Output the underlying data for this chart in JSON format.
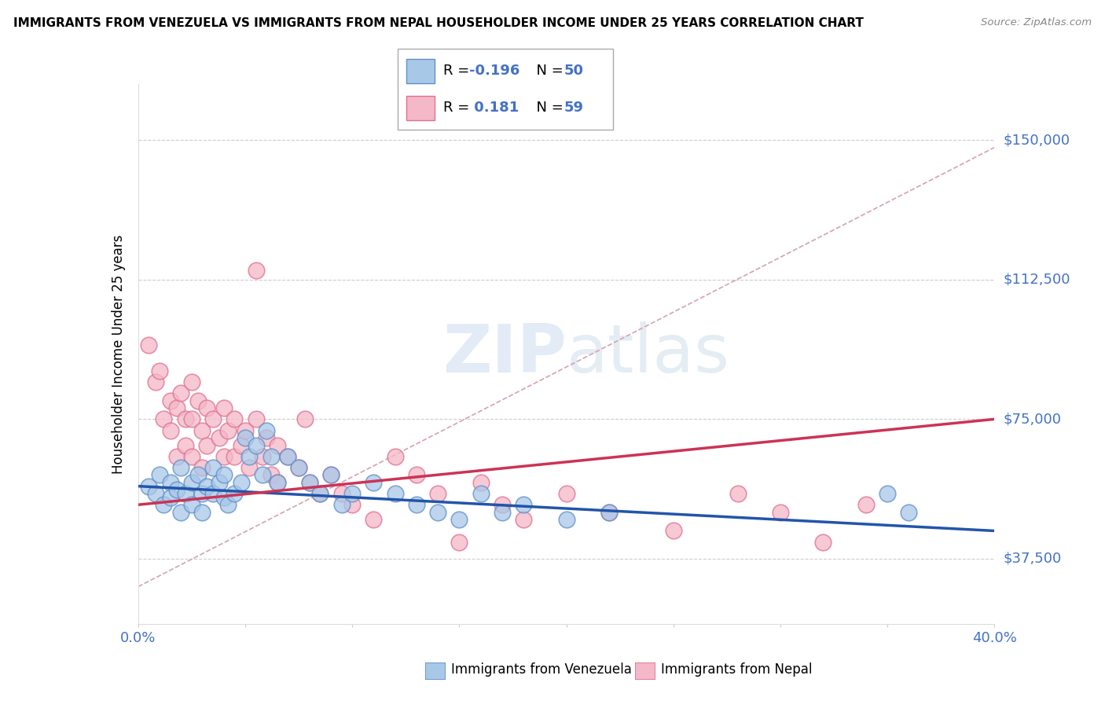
{
  "title": "IMMIGRANTS FROM VENEZUELA VS IMMIGRANTS FROM NEPAL HOUSEHOLDER INCOME UNDER 25 YEARS CORRELATION CHART",
  "source": "Source: ZipAtlas.com",
  "ylabel": "Householder Income Under 25 years",
  "xlim": [
    0.0,
    0.4
  ],
  "ylim": [
    20000,
    165000
  ],
  "ytick_values": [
    37500,
    75000,
    112500,
    150000
  ],
  "ytick_labels": [
    "$37,500",
    "$75,000",
    "$112,500",
    "$150,000"
  ],
  "venezuela_color": "#a8c8e8",
  "nepal_color": "#f4b8c8",
  "venezuela_edge": "#6090c8",
  "nepal_edge": "#e07090",
  "trend_venezuela_color": "#2255aa",
  "trend_nepal_color": "#cc3355",
  "trend_dashed_color": "#d8a0b0",
  "R_venezuela": -0.196,
  "N_venezuela": 50,
  "R_nepal": 0.181,
  "N_nepal": 59,
  "legend_label_venezuela": "Immigrants from Venezuela",
  "legend_label_nepal": "Immigrants from Nepal",
  "legend_text_color": "#4472c4",
  "watermark_color": "#d0dff0",
  "venezuela_x": [
    0.005,
    0.008,
    0.01,
    0.012,
    0.015,
    0.015,
    0.018,
    0.02,
    0.02,
    0.022,
    0.025,
    0.025,
    0.028,
    0.03,
    0.03,
    0.032,
    0.035,
    0.035,
    0.038,
    0.04,
    0.04,
    0.042,
    0.045,
    0.048,
    0.05,
    0.052,
    0.055,
    0.058,
    0.06,
    0.062,
    0.065,
    0.07,
    0.075,
    0.08,
    0.085,
    0.09,
    0.095,
    0.1,
    0.11,
    0.12,
    0.13,
    0.14,
    0.15,
    0.16,
    0.17,
    0.18,
    0.2,
    0.22,
    0.35,
    0.36
  ],
  "venezuela_y": [
    57000,
    55000,
    60000,
    52000,
    58000,
    54000,
    56000,
    50000,
    62000,
    55000,
    58000,
    52000,
    60000,
    55000,
    50000,
    57000,
    62000,
    55000,
    58000,
    54000,
    60000,
    52000,
    55000,
    58000,
    70000,
    65000,
    68000,
    60000,
    72000,
    65000,
    58000,
    65000,
    62000,
    58000,
    55000,
    60000,
    52000,
    55000,
    58000,
    55000,
    52000,
    50000,
    48000,
    55000,
    50000,
    52000,
    48000,
    50000,
    55000,
    50000
  ],
  "nepal_x": [
    0.005,
    0.008,
    0.01,
    0.012,
    0.015,
    0.015,
    0.018,
    0.018,
    0.02,
    0.022,
    0.022,
    0.025,
    0.025,
    0.025,
    0.028,
    0.03,
    0.03,
    0.032,
    0.032,
    0.035,
    0.038,
    0.04,
    0.04,
    0.042,
    0.045,
    0.045,
    0.048,
    0.05,
    0.052,
    0.055,
    0.055,
    0.058,
    0.06,
    0.062,
    0.065,
    0.065,
    0.07,
    0.075,
    0.078,
    0.08,
    0.085,
    0.09,
    0.095,
    0.1,
    0.11,
    0.12,
    0.13,
    0.14,
    0.15,
    0.16,
    0.17,
    0.18,
    0.2,
    0.22,
    0.25,
    0.28,
    0.3,
    0.32,
    0.34
  ],
  "nepal_y": [
    95000,
    85000,
    88000,
    75000,
    80000,
    72000,
    78000,
    65000,
    82000,
    75000,
    68000,
    85000,
    75000,
    65000,
    80000,
    72000,
    62000,
    78000,
    68000,
    75000,
    70000,
    78000,
    65000,
    72000,
    75000,
    65000,
    68000,
    72000,
    62000,
    75000,
    115000,
    65000,
    70000,
    60000,
    68000,
    58000,
    65000,
    62000,
    75000,
    58000,
    55000,
    60000,
    55000,
    52000,
    48000,
    65000,
    60000,
    55000,
    42000,
    58000,
    52000,
    48000,
    55000,
    50000,
    45000,
    55000,
    50000,
    42000,
    52000
  ]
}
